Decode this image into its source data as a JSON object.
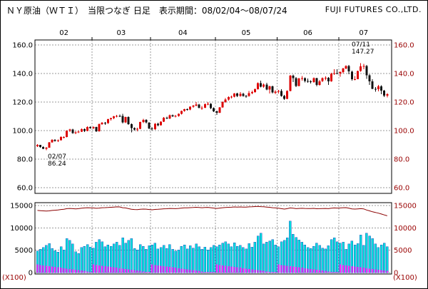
{
  "header": {
    "title": "ＮＹ原油（ＷＴＩ）　当限つなぎ 日足　表示期間：08/02/04～08/07/24",
    "company": "FUJI FUTURES CO.,LTD."
  },
  "colors": {
    "up": "#dd0000",
    "down": "#111111",
    "volume_fill": "#00dcdc",
    "volume_stroke": "#2233bb",
    "oi_line": "#8b0000",
    "minor_marks": "#ff22ff",
    "grid": "#9a9a9a",
    "left_axis_text": "#000000",
    "right_axis_text": "#990000"
  },
  "chart_data": {
    "type": "candlestick",
    "title": "ＮＹ原油（ＷＴＩ） 当限つなぎ 日足",
    "period": "08/02/04～08/07/24",
    "legend_position": "none",
    "grid": true,
    "month_labels": [
      "02",
      "03",
      "04",
      "05",
      "06",
      "07"
    ],
    "price_axis": {
      "min": 60,
      "max": 160,
      "ticks": [
        160,
        140,
        120,
        100,
        80,
        60
      ],
      "tick_labels": [
        "160.0",
        "140.0",
        "120.0",
        "100.0",
        "80.0",
        "60.0"
      ]
    },
    "volume_axis": {
      "min": 0,
      "max": 15000,
      "ticks": [
        15000,
        10000,
        5000,
        0
      ],
      "tick_labels": [
        "15000",
        "10000",
        "5000",
        "0"
      ],
      "unit_label": "(X100)"
    },
    "annotations": [
      {
        "date": "02/07",
        "lines": [
          "02/07",
          "86.24"
        ],
        "placement": "below"
      },
      {
        "date": "07/11",
        "lines": [
          "07/11",
          "147.27"
        ],
        "placement": "above"
      }
    ],
    "series_note": "candles rows = [date, open, high, low, close, volume_x100, open_interest_x100]",
    "candles": [
      [
        "02/04",
        88.96,
        90.45,
        88.6,
        90.0,
        4800,
        13900
      ],
      [
        "02/05",
        90.0,
        90.1,
        88.05,
        88.41,
        5200,
        13850
      ],
      [
        "02/06",
        88.41,
        88.9,
        86.9,
        87.14,
        5600,
        13800
      ],
      [
        "02/07",
        87.14,
        88.6,
        86.24,
        88.11,
        6100,
        13750
      ],
      [
        "02/08",
        88.11,
        92.1,
        87.9,
        91.77,
        6500,
        13800
      ],
      [
        "02/11",
        91.77,
        93.9,
        91.4,
        93.59,
        5400,
        13900
      ],
      [
        "02/12",
        93.59,
        94.0,
        92.3,
        92.78,
        4900,
        13950
      ],
      [
        "02/13",
        92.78,
        93.8,
        92.1,
        93.27,
        4600,
        14000
      ],
      [
        "02/14",
        93.27,
        95.9,
        93.0,
        95.46,
        5800,
        14100
      ],
      [
        "02/15",
        95.46,
        96.1,
        94.6,
        95.5,
        5100,
        14150
      ],
      [
        "02/19",
        95.5,
        100.1,
        95.2,
        100.01,
        7600,
        14300
      ],
      [
        "02/20",
        100.01,
        101.3,
        99.1,
        100.74,
        7200,
        14350
      ],
      [
        "02/21",
        100.74,
        101.2,
        97.8,
        98.23,
        6400,
        14300
      ],
      [
        "02/22",
        98.23,
        99.4,
        97.6,
        98.81,
        4700,
        14250
      ],
      [
        "02/25",
        98.81,
        99.9,
        98.2,
        99.23,
        4300,
        14300
      ],
      [
        "02/26",
        99.23,
        101.4,
        98.9,
        100.88,
        5600,
        14400
      ],
      [
        "02/27",
        100.88,
        101.5,
        99.1,
        99.64,
        5900,
        14450
      ],
      [
        "02/28",
        99.64,
        102.9,
        99.4,
        102.59,
        6300,
        14500
      ],
      [
        "02/29",
        102.59,
        103.05,
        101.2,
        101.84,
        5700,
        14480
      ],
      [
        "03/03",
        101.84,
        103.1,
        101.0,
        102.45,
        5500,
        14450
      ],
      [
        "03/04",
        102.45,
        102.8,
        99.0,
        99.52,
        6800,
        14380
      ],
      [
        "03/05",
        99.52,
        104.95,
        99.2,
        104.52,
        7400,
        14420
      ],
      [
        "03/06",
        104.52,
        105.97,
        103.9,
        105.47,
        6900,
        14500
      ],
      [
        "03/07",
        105.47,
        106.0,
        104.1,
        105.15,
        5800,
        14520
      ],
      [
        "03/10",
        105.15,
        108.2,
        104.7,
        107.9,
        6200,
        14560
      ],
      [
        "03/11",
        107.9,
        109.1,
        107.0,
        108.75,
        5900,
        14600
      ],
      [
        "03/12",
        108.75,
        110.2,
        108.1,
        109.92,
        6400,
        14650
      ],
      [
        "03/13",
        109.92,
        111.0,
        109.2,
        110.33,
        6800,
        14700
      ],
      [
        "03/14",
        110.33,
        111.25,
        109.6,
        110.21,
        6100,
        14680
      ],
      [
        "03/17",
        110.21,
        111.8,
        104.9,
        105.68,
        7800,
        14500
      ],
      [
        "03/18",
        105.68,
        109.8,
        105.2,
        109.42,
        6600,
        14450
      ],
      [
        "03/19",
        109.42,
        109.9,
        103.9,
        104.48,
        7200,
        14300
      ],
      [
        "03/20",
        104.48,
        105.1,
        98.8,
        101.84,
        7600,
        14150
      ],
      [
        "03/24",
        101.84,
        102.3,
        99.9,
        100.86,
        5400,
        14100
      ],
      [
        "03/25",
        100.86,
        102.0,
        99.6,
        101.22,
        5100,
        14080
      ],
      [
        "03/26",
        101.22,
        106.3,
        100.9,
        105.9,
        6300,
        14150
      ],
      [
        "03/27",
        105.9,
        108.2,
        105.3,
        107.58,
        5900,
        14200
      ],
      [
        "03/28",
        107.58,
        108.1,
        105.0,
        105.62,
        5200,
        14180
      ],
      [
        "03/31",
        105.62,
        106.0,
        100.9,
        101.58,
        6000,
        14100
      ],
      [
        "04/01",
        101.58,
        102.5,
        99.9,
        100.98,
        6200,
        14050
      ],
      [
        "04/02",
        100.98,
        105.3,
        100.6,
        104.83,
        6600,
        14120
      ],
      [
        "04/03",
        104.83,
        105.5,
        103.0,
        103.83,
        5300,
        14150
      ],
      [
        "04/04",
        103.83,
        106.6,
        103.4,
        106.23,
        5600,
        14200
      ],
      [
        "04/07",
        106.23,
        109.5,
        105.9,
        109.09,
        6100,
        14260
      ],
      [
        "04/08",
        109.09,
        109.7,
        107.9,
        108.5,
        5400,
        14280
      ],
      [
        "04/09",
        108.5,
        111.2,
        108.1,
        110.87,
        6300,
        14350
      ],
      [
        "04/10",
        110.87,
        111.3,
        109.4,
        110.11,
        5200,
        14330
      ],
      [
        "04/11",
        110.11,
        110.9,
        109.2,
        110.14,
        4800,
        14300
      ],
      [
        "04/14",
        110.14,
        112.1,
        109.8,
        111.76,
        5100,
        14350
      ],
      [
        "04/15",
        111.76,
        114.1,
        111.3,
        113.79,
        5900,
        14420
      ],
      [
        "04/16",
        113.79,
        115.3,
        113.2,
        114.93,
        6200,
        14480
      ],
      [
        "04/17",
        114.93,
        115.6,
        113.9,
        114.86,
        5300,
        14470
      ],
      [
        "04/18",
        114.86,
        117.0,
        114.3,
        116.69,
        6000,
        14520
      ],
      [
        "04/21",
        116.69,
        117.9,
        115.9,
        117.48,
        5500,
        14560
      ],
      [
        "04/22",
        117.48,
        119.9,
        117.0,
        118.3,
        6400,
        14600
      ],
      [
        "04/23",
        118.3,
        118.7,
        115.5,
        116.06,
        5800,
        14550
      ],
      [
        "04/24",
        116.06,
        117.2,
        114.6,
        116.06,
        5200,
        14500
      ],
      [
        "04/25",
        116.06,
        119.1,
        115.7,
        118.52,
        5700,
        14550
      ],
      [
        "04/28",
        118.52,
        119.9,
        117.8,
        118.75,
        5100,
        14580
      ],
      [
        "04/29",
        118.75,
        119.2,
        115.1,
        115.63,
        5600,
        14500
      ],
      [
        "04/30",
        115.63,
        116.3,
        112.9,
        113.46,
        6100,
        14420
      ],
      [
        "05/01",
        113.46,
        114.1,
        110.9,
        112.52,
        5800,
        14350
      ],
      [
        "05/02",
        112.52,
        116.6,
        112.2,
        116.32,
        6200,
        14420
      ],
      [
        "05/05",
        116.32,
        120.4,
        115.9,
        119.97,
        6600,
        14500
      ],
      [
        "05/06",
        119.97,
        122.7,
        119.5,
        121.84,
        6900,
        14560
      ],
      [
        "05/07",
        121.84,
        123.9,
        121.1,
        123.53,
        6400,
        14600
      ],
      [
        "05/08",
        123.53,
        124.5,
        122.6,
        123.69,
        5800,
        14620
      ],
      [
        "05/09",
        123.69,
        126.25,
        123.2,
        125.96,
        6700,
        14680
      ],
      [
        "05/12",
        125.96,
        126.4,
        123.6,
        124.23,
        5900,
        14650
      ],
      [
        "05/13",
        124.23,
        126.98,
        123.8,
        125.8,
        6100,
        14680
      ],
      [
        "05/14",
        125.8,
        126.6,
        123.7,
        124.22,
        5600,
        14650
      ],
      [
        "05/15",
        124.22,
        125.1,
        122.9,
        124.12,
        5300,
        14640
      ],
      [
        "05/16",
        124.12,
        127.8,
        123.8,
        126.29,
        6500,
        14700
      ],
      [
        "05/19",
        126.29,
        127.99,
        125.5,
        127.05,
        5700,
        14720
      ],
      [
        "05/20",
        127.05,
        129.6,
        126.4,
        129.07,
        6800,
        14760
      ],
      [
        "05/21",
        129.07,
        133.8,
        128.8,
        133.17,
        8200,
        14800
      ],
      [
        "05/22",
        133.17,
        135.09,
        130.3,
        130.81,
        8800,
        14750
      ],
      [
        "05/23",
        130.81,
        132.9,
        129.9,
        132.19,
        6400,
        14720
      ],
      [
        "05/27",
        132.19,
        133.4,
        128.3,
        128.85,
        6800,
        14650
      ],
      [
        "05/28",
        128.85,
        131.6,
        126.1,
        131.03,
        7100,
        14600
      ],
      [
        "05/29",
        131.03,
        131.5,
        125.9,
        126.62,
        7400,
        14500
      ],
      [
        "05/30",
        126.62,
        128.3,
        125.6,
        127.35,
        6200,
        14450
      ],
      [
        "06/02",
        127.35,
        128.6,
        126.0,
        127.76,
        5800,
        14400
      ],
      [
        "06/03",
        127.76,
        128.9,
        123.7,
        124.31,
        6900,
        14300
      ],
      [
        "06/04",
        124.31,
        124.9,
        121.6,
        122.3,
        7200,
        14200
      ],
      [
        "06/05",
        122.3,
        128.2,
        121.9,
        127.79,
        7800,
        14300
      ],
      [
        "06/06",
        127.79,
        139.12,
        127.5,
        138.54,
        11500,
        14450
      ],
      [
        "06/09",
        138.54,
        139.3,
        134.1,
        136.8,
        8600,
        14400
      ],
      [
        "06/10",
        136.8,
        137.4,
        130.6,
        131.31,
        7900,
        14300
      ],
      [
        "06/11",
        131.31,
        136.9,
        130.9,
        136.38,
        7300,
        14350
      ],
      [
        "06/12",
        136.38,
        138.3,
        135.1,
        136.74,
        6800,
        14380
      ],
      [
        "06/13",
        136.74,
        137.3,
        133.7,
        134.86,
        6200,
        14350
      ],
      [
        "06/16",
        134.86,
        136.6,
        133.5,
        134.61,
        5600,
        14330
      ],
      [
        "06/17",
        134.61,
        135.3,
        132.9,
        134.01,
        5400,
        14320
      ],
      [
        "06/18",
        134.01,
        137.2,
        133.6,
        136.68,
        5900,
        14360
      ],
      [
        "06/19",
        136.68,
        137.0,
        131.1,
        131.93,
        6600,
        14280
      ],
      [
        "06/20",
        131.93,
        135.5,
        131.5,
        134.62,
        6100,
        14300
      ],
      [
        "06/23",
        134.62,
        137.3,
        134.0,
        136.74,
        5500,
        14330
      ],
      [
        "06/24",
        136.74,
        137.9,
        135.2,
        137.0,
        5300,
        14350
      ],
      [
        "06/25",
        137.0,
        137.5,
        131.9,
        134.55,
        6000,
        14300
      ],
      [
        "06/26",
        134.55,
        140.39,
        134.2,
        139.64,
        7400,
        14400
      ],
      [
        "06/27",
        139.64,
        142.99,
        139.0,
        140.21,
        7800,
        14450
      ],
      [
        "06/30",
        140.21,
        143.05,
        139.6,
        140.0,
        6900,
        14430
      ],
      [
        "07/01",
        140.0,
        141.5,
        137.7,
        140.97,
        6600,
        14450
      ],
      [
        "07/02",
        140.97,
        144.0,
        140.1,
        143.57,
        6800,
        14500
      ],
      [
        "07/03",
        143.57,
        145.85,
        143.1,
        145.29,
        5200,
        14520
      ],
      [
        "07/07",
        145.29,
        145.9,
        139.6,
        141.37,
        6400,
        14400
      ],
      [
        "07/08",
        141.37,
        141.9,
        135.1,
        136.04,
        7100,
        14250
      ],
      [
        "07/09",
        136.04,
        138.3,
        135.3,
        136.05,
        6200,
        14200
      ],
      [
        "07/10",
        136.05,
        142.1,
        135.9,
        141.65,
        6500,
        14250
      ],
      [
        "07/11",
        141.65,
        147.27,
        141.2,
        145.08,
        8400,
        14300
      ],
      [
        "07/14",
        145.08,
        146.73,
        142.9,
        145.18,
        6100,
        14250
      ],
      [
        "07/15",
        145.18,
        146.0,
        136.2,
        138.74,
        8800,
        14000
      ],
      [
        "07/16",
        138.74,
        139.4,
        132.1,
        134.6,
        8200,
        13800
      ],
      [
        "07/17",
        134.6,
        136.0,
        128.9,
        129.29,
        7600,
        13600
      ],
      [
        "07/18",
        129.29,
        130.6,
        127.3,
        128.88,
        6400,
        13450
      ],
      [
        "07/21",
        128.88,
        132.1,
        127.6,
        131.04,
        5600,
        13300
      ],
      [
        "07/22",
        131.04,
        131.8,
        125.6,
        127.95,
        6200,
        13100
      ],
      [
        "07/23",
        127.95,
        128.6,
        123.5,
        124.44,
        6600,
        12900
      ],
      [
        "07/24",
        124.44,
        126.2,
        123.3,
        125.49,
        5800,
        12700
      ]
    ]
  }
}
